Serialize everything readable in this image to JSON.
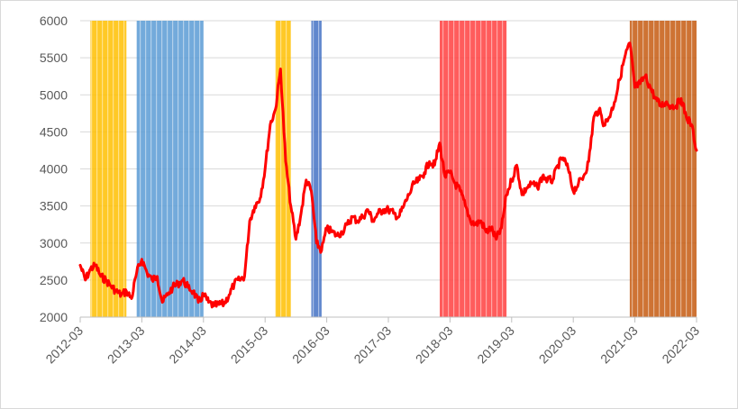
{
  "chart_data": {
    "type": "line",
    "title": "",
    "xlabel": "",
    "ylabel": "",
    "ylim": [
      2000,
      6000
    ],
    "y_ticks": [
      2000,
      2500,
      3000,
      3500,
      4000,
      4500,
      5000,
      5500,
      6000
    ],
    "x_ticks": [
      "2012-03",
      "2013-03",
      "2014-03",
      "2015-03",
      "2016-03",
      "2017-03",
      "2018-03",
      "2019-03",
      "2020-03",
      "2021-03",
      "2022-03"
    ],
    "x_range": [
      "2012-03",
      "2022-03"
    ],
    "grid": "horizontal",
    "legend": "none",
    "line_color": "#ff0000",
    "series": [
      {
        "values": [
          [
            "2012-03",
            2700
          ],
          [
            "2012-04",
            2500
          ],
          [
            "2012-05",
            2650
          ],
          [
            "2012-06",
            2700
          ],
          [
            "2012-07",
            2550
          ],
          [
            "2012-08",
            2500
          ],
          [
            "2012-09",
            2420
          ],
          [
            "2012-10",
            2350
          ],
          [
            "2012-11",
            2300
          ],
          [
            "2012-12",
            2350
          ],
          [
            "2013-01",
            2250
          ],
          [
            "2013-02",
            2600
          ],
          [
            "2013-03",
            2780
          ],
          [
            "2013-04",
            2600
          ],
          [
            "2013-05",
            2500
          ],
          [
            "2013-06",
            2550
          ],
          [
            "2013-07",
            2200
          ],
          [
            "2013-08",
            2300
          ],
          [
            "2013-09",
            2400
          ],
          [
            "2013-10",
            2450
          ],
          [
            "2013-11",
            2500
          ],
          [
            "2013-12",
            2400
          ],
          [
            "2014-01",
            2350
          ],
          [
            "2014-02",
            2200
          ],
          [
            "2014-03",
            2300
          ],
          [
            "2014-04",
            2200
          ],
          [
            "2014-05",
            2150
          ],
          [
            "2014-06",
            2170
          ],
          [
            "2014-07",
            2180
          ],
          [
            "2014-08",
            2300
          ],
          [
            "2014-09",
            2450
          ],
          [
            "2014-10",
            2500
          ],
          [
            "2014-11",
            2550
          ],
          [
            "2014-12",
            3300
          ],
          [
            "2015-01",
            3500
          ],
          [
            "2015-02",
            3600
          ],
          [
            "2015-03",
            4000
          ],
          [
            "2015-04",
            4600
          ],
          [
            "2015-05",
            4800
          ],
          [
            "2015-06",
            5350
          ],
          [
            "2015-07",
            4100
          ],
          [
            "2015-08",
            3500
          ],
          [
            "2015-09",
            3050
          ],
          [
            "2015-10",
            3400
          ],
          [
            "2015-11",
            3850
          ],
          [
            "2015-12",
            3700
          ],
          [
            "2016-01",
            3000
          ],
          [
            "2016-02",
            2900
          ],
          [
            "2016-03",
            3200
          ],
          [
            "2016-04",
            3150
          ],
          [
            "2016-05",
            3100
          ],
          [
            "2016-06",
            3150
          ],
          [
            "2016-07",
            3250
          ],
          [
            "2016-08",
            3350
          ],
          [
            "2016-09",
            3300
          ],
          [
            "2016-10",
            3350
          ],
          [
            "2016-11",
            3450
          ],
          [
            "2016-12",
            3300
          ],
          [
            "2017-01",
            3400
          ],
          [
            "2017-02",
            3450
          ],
          [
            "2017-03",
            3450
          ],
          [
            "2017-04",
            3400
          ],
          [
            "2017-05",
            3350
          ],
          [
            "2017-06",
            3500
          ],
          [
            "2017-07",
            3650
          ],
          [
            "2017-08",
            3800
          ],
          [
            "2017-09",
            3850
          ],
          [
            "2017-10",
            3950
          ],
          [
            "2017-11",
            4100
          ],
          [
            "2017-12",
            4050
          ],
          [
            "2018-01",
            4350
          ],
          [
            "2018-02",
            3900
          ],
          [
            "2018-03",
            3950
          ],
          [
            "2018-04",
            3800
          ],
          [
            "2018-05",
            3700
          ],
          [
            "2018-06",
            3500
          ],
          [
            "2018-07",
            3300
          ],
          [
            "2018-08",
            3250
          ],
          [
            "2018-09",
            3300
          ],
          [
            "2018-10",
            3150
          ],
          [
            "2018-11",
            3200
          ],
          [
            "2018-12",
            3050
          ],
          [
            "2019-01",
            3200
          ],
          [
            "2019-02",
            3650
          ],
          [
            "2019-03",
            3850
          ],
          [
            "2019-04",
            4050
          ],
          [
            "2019-05",
            3650
          ],
          [
            "2019-06",
            3750
          ],
          [
            "2019-07",
            3800
          ],
          [
            "2019-08",
            3750
          ],
          [
            "2019-09",
            3900
          ],
          [
            "2019-10",
            3850
          ],
          [
            "2019-11",
            3850
          ],
          [
            "2019-12",
            4050
          ],
          [
            "2020-01",
            4150
          ],
          [
            "2020-02",
            4000
          ],
          [
            "2020-03",
            3700
          ],
          [
            "2020-04",
            3800
          ],
          [
            "2020-05",
            3900
          ],
          [
            "2020-06",
            4100
          ],
          [
            "2020-07",
            4700
          ],
          [
            "2020-08",
            4800
          ],
          [
            "2020-09",
            4600
          ],
          [
            "2020-10",
            4700
          ],
          [
            "2020-11",
            4900
          ],
          [
            "2020-12",
            5200
          ],
          [
            "2021-01",
            5500
          ],
          [
            "2021-02",
            5700
          ],
          [
            "2021-03",
            5100
          ],
          [
            "2021-04",
            5150
          ],
          [
            "2021-05",
            5250
          ],
          [
            "2021-06",
            5100
          ],
          [
            "2021-07",
            4950
          ],
          [
            "2021-08",
            4850
          ],
          [
            "2021-09",
            4900
          ],
          [
            "2021-10",
            4850
          ],
          [
            "2021-11",
            4850
          ],
          [
            "2021-12",
            4950
          ],
          [
            "2022-01",
            4700
          ],
          [
            "2022-02",
            4600
          ],
          [
            "2022-03",
            4250
          ]
        ]
      }
    ],
    "shaded_periods": [
      {
        "start": "2012-05",
        "end": "2012-12",
        "color": "#ffc000"
      },
      {
        "start": "2013-02",
        "end": "2014-03",
        "color": "#5b9bd5"
      },
      {
        "start": "2015-05",
        "end": "2015-08",
        "color": "#ffc000"
      },
      {
        "start": "2015-12",
        "end": "2016-02",
        "color": "#4472c4"
      },
      {
        "start": "2018-01",
        "end": "2019-02",
        "color": "#ff4040"
      },
      {
        "start": "2021-02",
        "end": "2022-03",
        "color": "#c55a11"
      }
    ]
  }
}
